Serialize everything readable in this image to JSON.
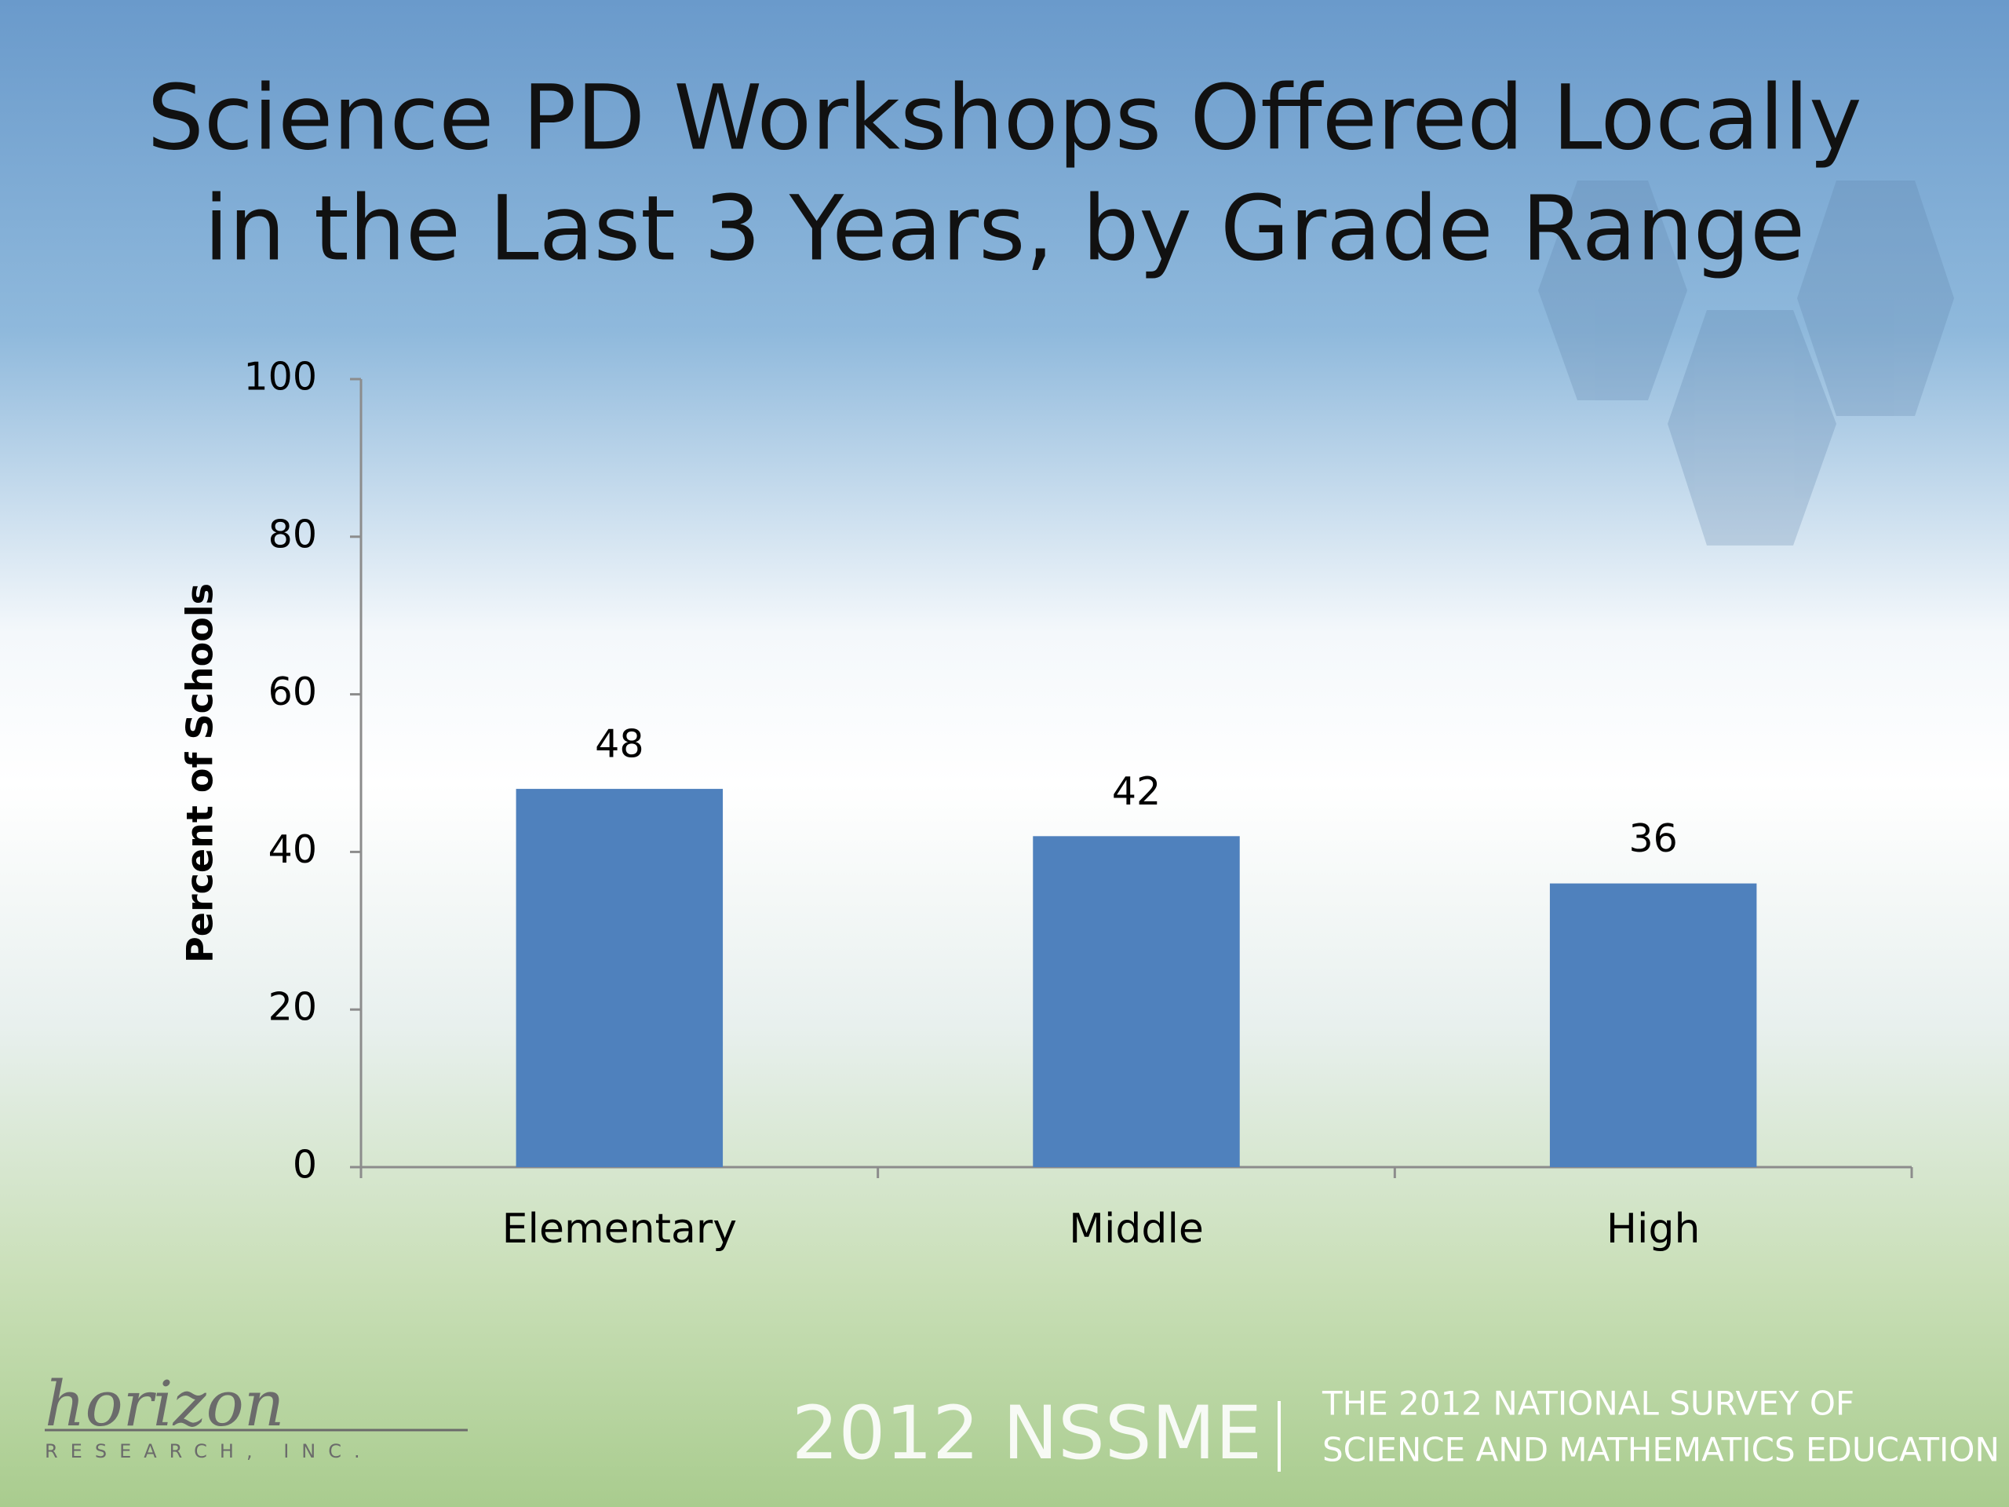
{
  "chart_data": {
    "type": "bar",
    "title": [
      "Science PD Workshops Offered Locally",
      "in the Last 3 Years, by Grade Range"
    ],
    "y_label": "Percent of Schools",
    "categories": [
      "Elementary",
      "Middle",
      "High"
    ],
    "values": [
      48,
      42,
      36
    ],
    "color": "#4f81bd",
    "ylim": [
      0,
      100
    ],
    "yticks": [
      0,
      20,
      40,
      60,
      80,
      100
    ]
  },
  "footer": {
    "logo": "horizon",
    "logo_sub": "RESEARCH, INC.",
    "brand": "2012 NSSME",
    "tagline": [
      "THE 2012 NATIONAL SURVEY OF",
      "SCIENCE AND MATHEMATICS EDUCATION"
    ]
  }
}
